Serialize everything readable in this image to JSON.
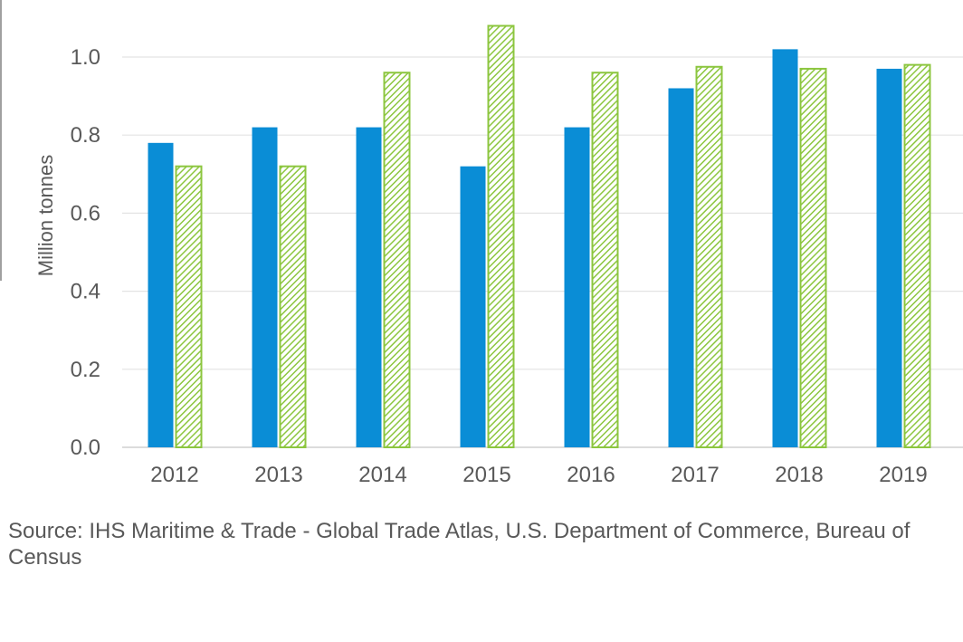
{
  "chart_data": {
    "type": "bar",
    "categories": [
      "2012",
      "2013",
      "2014",
      "2015",
      "2016",
      "2017",
      "2018",
      "2019"
    ],
    "series": [
      {
        "values": [
          0.78,
          0.82,
          0.82,
          0.72,
          0.82,
          0.92,
          1.02,
          0.97
        ],
        "color": "#0a8dd6",
        "fill": "solid"
      },
      {
        "values": [
          0.72,
          0.72,
          0.96,
          1.08,
          0.96,
          0.975,
          0.97,
          0.98
        ],
        "color": "#8cc63f",
        "fill": "hatched"
      }
    ],
    "yticks": [
      "0.0",
      "0.2",
      "0.4",
      "0.6",
      "0.8",
      "1.0"
    ],
    "ylabel": "Million tonnes",
    "xlabel": "",
    "ylim": [
      0,
      1.1
    ],
    "grid": true,
    "legend": "none"
  },
  "source_text": "Source: IHS Maritime & Trade - Global Trade Atlas, U.S. Department of Commerce, Bureau of Census"
}
